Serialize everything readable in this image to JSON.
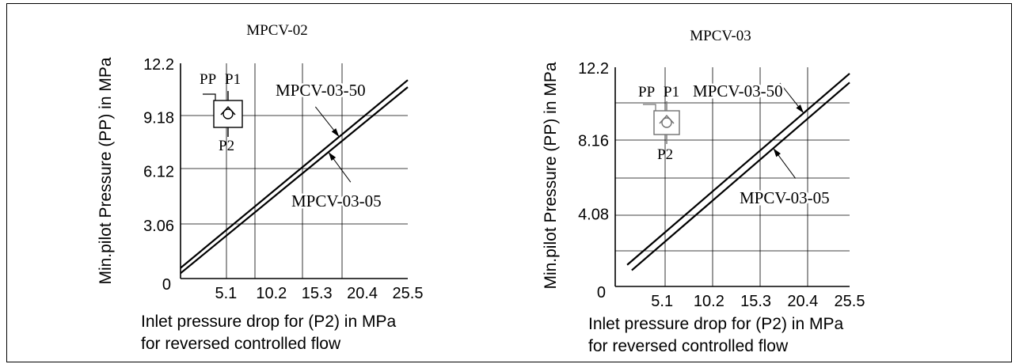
{
  "chart_data": [
    {
      "type": "line",
      "title": "MPCV-02",
      "xlabel": "Inlet pressure drop for (P2) in MPa",
      "xlabel2": "for reversed controlled flow",
      "ylabel": "Min.pilot Pressure (PP)  in MPa",
      "xlim": [
        0,
        25.5
      ],
      "ylim": [
        0,
        12.2
      ],
      "x_ticks": [
        "5.1",
        "10.2",
        "15.3",
        "20.4",
        "25.5"
      ],
      "x_tick_values": [
        5.1,
        10.2,
        15.3,
        20.4,
        25.5
      ],
      "y_ticks": [
        "3.06",
        "6.12",
        "9.18",
        "12.2"
      ],
      "y_tick_values": [
        3.06,
        6.12,
        9.18,
        12.2
      ],
      "origin_label": "0",
      "grid": true,
      "series": [
        {
          "name": "MPCV-03-50",
          "x": [
            0,
            25.5
          ],
          "y": [
            0.6,
            11.25
          ]
        },
        {
          "name": "MPCV-03-05",
          "x": [
            0,
            25.5
          ],
          "y": [
            0.3,
            10.85
          ]
        }
      ],
      "annotations": [
        {
          "text": "MPCV-03-50",
          "series": 0,
          "at": 17.8
        },
        {
          "text": "MPCV-03-05",
          "series": 1,
          "at": 16.6
        }
      ],
      "symbol": {
        "labels": [
          "PP",
          "P1",
          "P2"
        ]
      }
    },
    {
      "type": "line",
      "title": "MPCV-03",
      "xlabel": "Inlet pressure drop for (P2) in MPa",
      "xlabel2": "for reversed controlled flow",
      "ylabel": "Min.pilot Pressure (PP)  in MPa",
      "xlim": [
        0,
        25.5
      ],
      "ylim": [
        0,
        12.2
      ],
      "x_ticks": [
        "5.1",
        "10.2",
        "15.3",
        "20.4",
        "25.5"
      ],
      "x_tick_values": [
        5.1,
        10.2,
        15.3,
        20.4,
        25.5
      ],
      "y_ticks": [
        "4.08",
        "8.16",
        "12.2"
      ],
      "y_tick_values": [
        4.08,
        8.16,
        12.2
      ],
      "origin_label": "0",
      "grid": true,
      "series": [
        {
          "name": "MPCV-03-50",
          "x": [
            1.3,
            25.5
          ],
          "y": [
            1.2,
            11.85
          ]
        },
        {
          "name": "MPCV-03-05",
          "x": [
            1.8,
            25.5
          ],
          "y": [
            0.9,
            11.35
          ]
        }
      ],
      "annotations": [
        {
          "text": "MPCV-03-50",
          "series": 0,
          "at": 20.5
        },
        {
          "text": "MPCV-03-05",
          "series": 1,
          "at": 17.2
        }
      ],
      "symbol": {
        "labels": [
          "PP",
          "P1",
          "P2"
        ]
      }
    }
  ],
  "colors": {
    "ink": "#000000",
    "grid": "#000000",
    "symbol_faded": "#707070"
  }
}
